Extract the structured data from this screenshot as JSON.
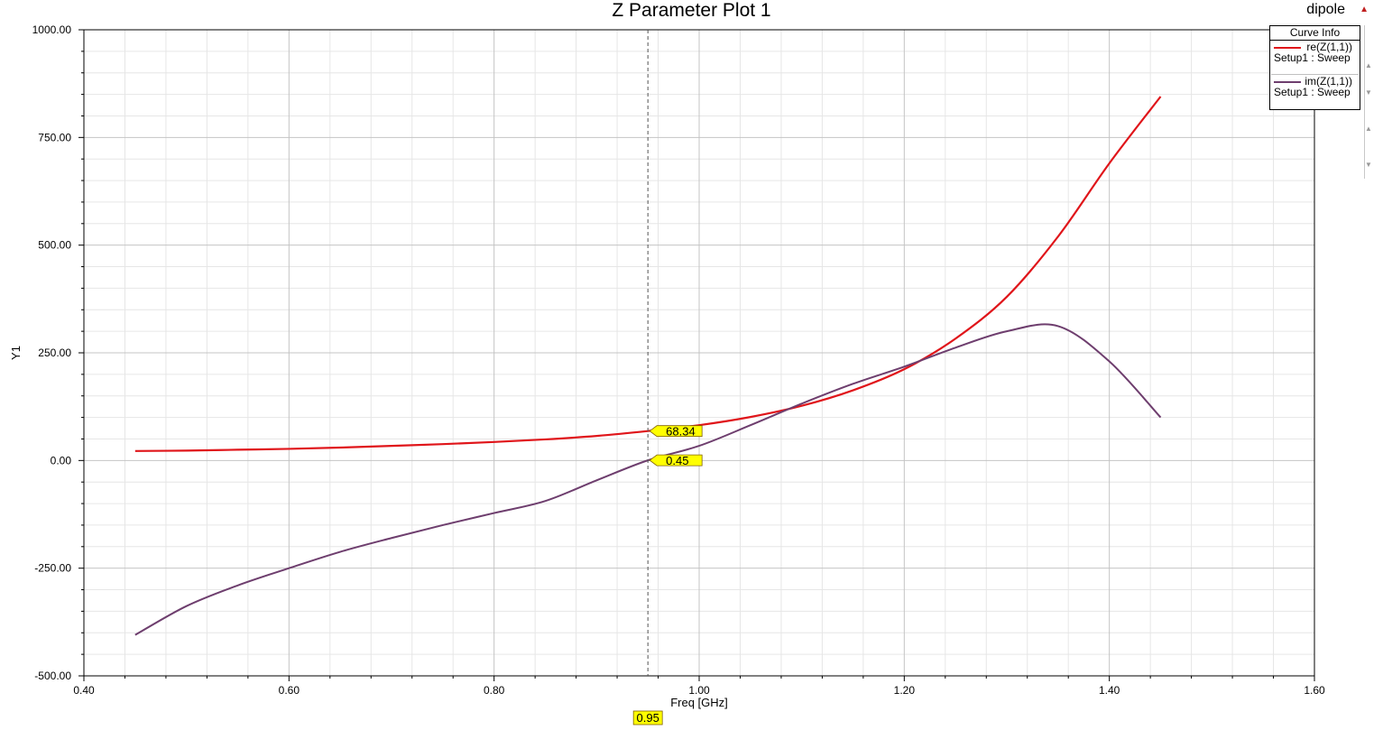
{
  "header": {
    "design_name": "dipole"
  },
  "legend": {
    "header": "Curve Info",
    "entries": [
      {
        "expr": "re(Z(1,1))",
        "setup": "Setup1 : Sweep",
        "color": "#e0151a"
      },
      {
        "expr": "im(Z(1,1))",
        "setup": "Setup1 : Sweep",
        "color": "#6e3e6e"
      }
    ]
  },
  "markers": {
    "cursor_x": 0.95,
    "cursor_label": "0.95",
    "re_label": "68.34",
    "im_label": "0.45",
    "label_bg": "#ffff00"
  },
  "chart_data": {
    "type": "line",
    "title": "Z Parameter Plot 1",
    "xlabel": "Freq [GHz]",
    "ylabel": "Y1",
    "xlim": [
      0.4,
      1.6
    ],
    "ylim": [
      -500,
      1000
    ],
    "x_ticks": [
      "0.40",
      "0.60",
      "0.80",
      "1.00",
      "1.20",
      "1.40",
      "1.60"
    ],
    "y_ticks": [
      "1000.00",
      "750.00",
      "500.00",
      "250.00",
      "0.00",
      "-250.00",
      "-500.00"
    ],
    "grid": true,
    "legend_position": "top-right",
    "x": [
      0.45,
      0.5,
      0.55,
      0.6,
      0.65,
      0.7,
      0.75,
      0.8,
      0.85,
      0.9,
      0.95,
      1.0,
      1.05,
      1.1,
      1.15,
      1.2,
      1.25,
      1.3,
      1.35,
      1.4,
      1.45
    ],
    "series": [
      {
        "name": "re(Z(1,1))",
        "color": "#e0151a",
        "values": [
          22,
          23,
          25,
          27,
          30,
          34,
          38,
          43,
          49,
          57,
          68.34,
          82,
          101,
          127,
          163,
          212,
          283,
          380,
          520,
          690,
          845
        ]
      },
      {
        "name": "im(Z(1,1))",
        "color": "#6e3e6e",
        "values": [
          -405,
          -338,
          -290,
          -250,
          -212,
          -180,
          -150,
          -122,
          -94,
          -46,
          0.45,
          34,
          82,
          132,
          178,
          218,
          262,
          300,
          312,
          230,
          100
        ]
      }
    ]
  }
}
